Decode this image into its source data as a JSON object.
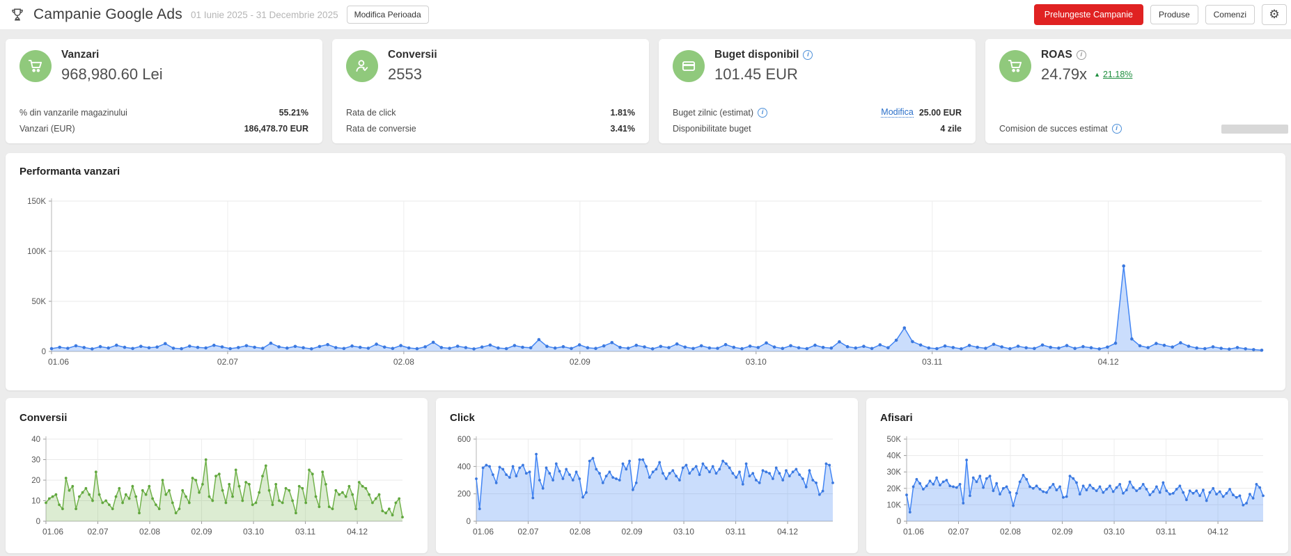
{
  "header": {
    "title": "Campanie Google Ads",
    "date_range": "01 Iunie 2025 - 31 Decembrie 2025",
    "modify_period_label": "Modifica Perioada",
    "extend_label": "Prelungeste Campanie",
    "products_label": "Produse",
    "orders_label": "Comenzi"
  },
  "icons": {
    "info": "i",
    "gear": "⚙",
    "arrow_up": "▲"
  },
  "colors": {
    "accent_red": "#e02222",
    "chart_blue": "#4285f4",
    "chart_green": "#72b24c",
    "icon_circle_green": "#90c97c",
    "link_blue": "#2a6fc9",
    "delta_green": "#1e8e3e"
  },
  "cards": {
    "vanzari": {
      "title": "Vanzari",
      "value": "968,980.60 Lei",
      "rows": [
        {
          "label": "% din vanzarile magazinului",
          "value": "55.21%"
        },
        {
          "label": "Vanzari (EUR)",
          "value": "186,478.70 EUR"
        }
      ]
    },
    "conversii": {
      "title": "Conversii",
      "value": "2553",
      "rows": [
        {
          "label": "Rata de click",
          "value": "1.81%"
        },
        {
          "label": "Rata de conversie",
          "value": "3.41%"
        }
      ]
    },
    "buget": {
      "title": "Buget disponibil",
      "value": "101.45 EUR",
      "rows": [
        {
          "label": "Buget zilnic (estimat)",
          "link_label": "Modifica",
          "value": "25.00 EUR"
        },
        {
          "label": "Disponibilitate buget",
          "value": "4 zile"
        }
      ]
    },
    "roas": {
      "title": "ROAS",
      "value": "24.79x",
      "delta": "21.18%",
      "rows": [
        {
          "label": "Comision de succes estimat",
          "value": ""
        }
      ]
    }
  },
  "chart_data": [
    {
      "type": "area",
      "title": "Performanta vanzari",
      "x_tick_labels": [
        "01.06",
        "02.07",
        "02.08",
        "02.09",
        "03.10",
        "03.11",
        "04.12"
      ],
      "x_tick_days": [
        0,
        31,
        62,
        93,
        124,
        155,
        186
      ],
      "total_days": 213,
      "ylim": [
        0,
        150000
      ],
      "yticks": [
        0,
        50000,
        100000,
        150000
      ],
      "ytick_labels": [
        "0",
        "50K",
        "100K",
        "150K"
      ],
      "color": "#4285f4",
      "dot_color": "#3b78de",
      "fill": "rgba(66,133,244,0.28)",
      "values": [
        2800,
        4200,
        3100,
        5600,
        3900,
        2500,
        4800,
        3400,
        6200,
        4100,
        2900,
        5100,
        3600,
        4400,
        7800,
        3200,
        2700,
        5300,
        4000,
        3500,
        6100,
        4500,
        2800,
        3900,
        5700,
        4200,
        3100,
        8200,
        4600,
        3300,
        5000,
        3700,
        2600,
        4900,
        6800,
        3800,
        2900,
        5400,
        4100,
        3200,
        7200,
        4300,
        3000,
        5800,
        3500,
        2700,
        4600,
        9100,
        3900,
        3100,
        5200,
        3800,
        2500,
        4400,
        6300,
        3400,
        2800,
        5900,
        4200,
        3600,
        11800,
        5100,
        3300,
        4700,
        2900,
        6500,
        3700,
        3000,
        5500,
        8800,
        4000,
        3200,
        6100,
        4500,
        2600,
        5000,
        3800,
        7400,
        4300,
        2900,
        5600,
        3500,
        3100,
        6800,
        4100,
        2700,
        5300,
        3900,
        8500,
        4400,
        3000,
        5700,
        3600,
        2800,
        6200,
        4000,
        3300,
        9600,
        4700,
        3400,
        5100,
        2900,
        6600,
        3700,
        11200,
        23400,
        9800,
        6400,
        3500,
        2800,
        5400,
        3900,
        2600,
        6000,
        4200,
        3100,
        7100,
        4500,
        2700,
        5200,
        3600,
        2900,
        6400,
        4100,
        3300,
        5800,
        3000,
        4800,
        3700,
        2500,
        4300,
        8200,
        85300,
        12400,
        5600,
        3800,
        7900,
        6100,
        4400,
        8600,
        5200,
        3400,
        2800,
        4600,
        3100,
        2300,
        3900,
        2600,
        1800,
        1200
      ]
    },
    {
      "type": "area",
      "title": "Conversii",
      "x_tick_labels": [
        "01.06",
        "02.07",
        "02.08",
        "02.09",
        "03.10",
        "03.11",
        "04.12"
      ],
      "x_tick_days": [
        0,
        31,
        62,
        93,
        124,
        155,
        186
      ],
      "total_days": 213,
      "ylim": [
        0,
        40
      ],
      "yticks": [
        0,
        10,
        20,
        30,
        40
      ],
      "ytick_labels": [
        "0",
        "10",
        "20",
        "30",
        "40"
      ],
      "color": "#72b24c",
      "dot_color": "#61a73e",
      "fill": "rgba(114,178,76,0.25)",
      "values": [
        9,
        11,
        12,
        13,
        8,
        6,
        21,
        15,
        17,
        6,
        12,
        14,
        16,
        13,
        10,
        24,
        13,
        9,
        10,
        8,
        6,
        12,
        16,
        9,
        13,
        11,
        17,
        12,
        4,
        15,
        13,
        17,
        11,
        8,
        6,
        20,
        13,
        15,
        9,
        4,
        6,
        15,
        12,
        9,
        21,
        20,
        14,
        18,
        30,
        12,
        10,
        22,
        23,
        15,
        9,
        18,
        12,
        25,
        17,
        10,
        19,
        18,
        8,
        9,
        14,
        22,
        27,
        15,
        8,
        18,
        10,
        9,
        16,
        15,
        10,
        4,
        17,
        16,
        9,
        25,
        23,
        12,
        7,
        24,
        18,
        7,
        6,
        15,
        13,
        14,
        12,
        17,
        13,
        6,
        19,
        17,
        16,
        13,
        9,
        11,
        13,
        5,
        4,
        6,
        3,
        9,
        11,
        2
      ]
    },
    {
      "type": "area",
      "title": "Click",
      "x_tick_labels": [
        "01.06",
        "02.07",
        "02.08",
        "02.09",
        "03.10",
        "03.11",
        "04.12"
      ],
      "x_tick_days": [
        0,
        31,
        62,
        93,
        124,
        155,
        186
      ],
      "total_days": 213,
      "ylim": [
        0,
        600
      ],
      "yticks": [
        0,
        200,
        400,
        600
      ],
      "ytick_labels": [
        "0",
        "200",
        "400",
        "600"
      ],
      "color": "#4285f4",
      "dot_color": "#3b78de",
      "fill": "rgba(66,133,244,0.28)",
      "values": [
        310,
        90,
        390,
        410,
        400,
        340,
        280,
        395,
        380,
        340,
        320,
        400,
        330,
        390,
        410,
        350,
        360,
        170,
        490,
        300,
        240,
        390,
        350,
        300,
        420,
        365,
        310,
        380,
        340,
        300,
        360,
        310,
        175,
        210,
        440,
        460,
        380,
        350,
        280,
        330,
        360,
        320,
        310,
        300,
        420,
        380,
        440,
        230,
        280,
        450,
        450,
        400,
        320,
        360,
        380,
        430,
        350,
        310,
        350,
        370,
        330,
        300,
        390,
        410,
        350,
        380,
        400,
        340,
        420,
        390,
        360,
        400,
        350,
        380,
        440,
        420,
        390,
        350,
        320,
        360,
        270,
        420,
        330,
        350,
        300,
        280,
        370,
        360,
        350,
        310,
        390,
        350,
        300,
        370,
        330,
        360,
        380,
        340,
        310,
        250,
        370,
        300,
        280,
        195,
        220,
        420,
        410,
        280
      ]
    },
    {
      "type": "area",
      "title": "Afisari",
      "x_tick_labels": [
        "01.06",
        "02.07",
        "02.08",
        "02.09",
        "03.10",
        "03.11",
        "04.12"
      ],
      "x_tick_days": [
        0,
        31,
        62,
        93,
        124,
        155,
        186
      ],
      "total_days": 213,
      "ylim": [
        0,
        50000
      ],
      "yticks": [
        0,
        10000,
        20000,
        30000,
        40000,
        50000
      ],
      "ytick_labels": [
        "0",
        "10K",
        "20K",
        "30K",
        "40K",
        "50K"
      ],
      "color": "#4285f4",
      "dot_color": "#3b78de",
      "fill": "rgba(66,133,244,0.28)",
      "values": [
        16000,
        5500,
        21000,
        25500,
        23000,
        19500,
        21500,
        24500,
        22500,
        26500,
        22000,
        24000,
        25000,
        21500,
        21000,
        20500,
        22500,
        11000,
        37300,
        15500,
        26500,
        24000,
        27500,
        20500,
        26000,
        27500,
        18500,
        23000,
        16500,
        20000,
        21000,
        17500,
        9500,
        17000,
        24000,
        28000,
        25500,
        21000,
        20000,
        21500,
        19500,
        18000,
        17500,
        20500,
        22500,
        19000,
        21000,
        14500,
        15000,
        27500,
        26000,
        23500,
        16500,
        21500,
        19000,
        22000,
        20000,
        18500,
        21000,
        17500,
        19500,
        21500,
        18000,
        20500,
        22500,
        17000,
        19000,
        24000,
        20500,
        18500,
        20000,
        22500,
        19500,
        16000,
        18000,
        21000,
        17500,
        23500,
        18500,
        16500,
        17000,
        19500,
        21500,
        17500,
        13000,
        18500,
        17000,
        18500,
        15500,
        19000,
        12500,
        17500,
        20000,
        16500,
        18000,
        15000,
        17000,
        19500,
        16000,
        14500,
        15500,
        9800,
        11000,
        16500,
        14000,
        22500,
        20500,
        15500
      ]
    }
  ]
}
